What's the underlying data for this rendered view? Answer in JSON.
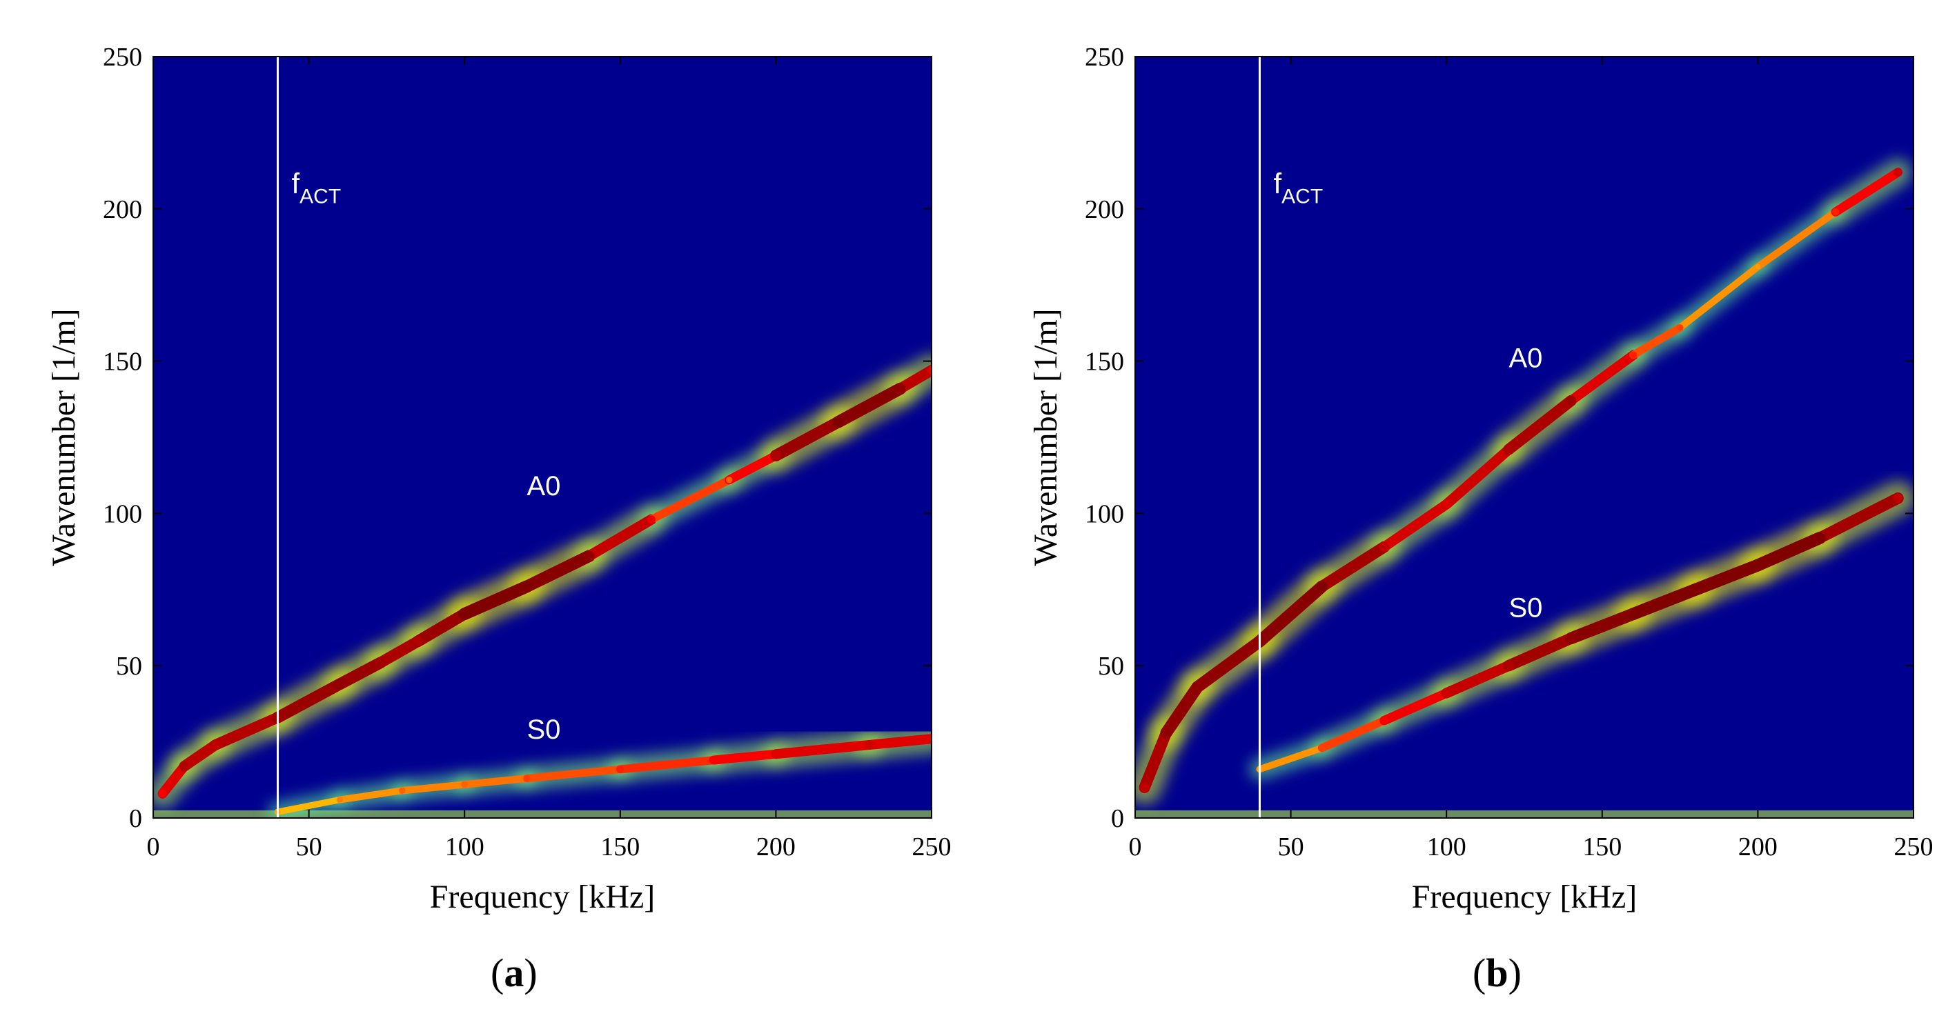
{
  "colors": {
    "background": "#00008f",
    "jet": [
      "#00008f",
      "#0000ff",
      "#00ffff",
      "#ffff00",
      "#ff0000",
      "#800000"
    ],
    "reference_line": "#ffffff",
    "annotation_text": "#ffffff"
  },
  "chart_data": [
    {
      "type": "heatmap",
      "panel_label": "a",
      "title": "",
      "xlabel": "Frequency [kHz]",
      "ylabel": "Wavenumber [1/m]",
      "xlim": [
        0,
        250
      ],
      "ylim": [
        0,
        250
      ],
      "xticks": [
        "0",
        "50",
        "100",
        "150",
        "200",
        "250"
      ],
      "yticks": [
        "0",
        "50",
        "100",
        "150",
        "200",
        "250"
      ],
      "reference_line": {
        "x": 40,
        "label_main": "f",
        "label_sub": "ACT"
      },
      "modes": [
        {
          "name": "A0",
          "label_at": [
            120,
            106
          ],
          "ridge": [
            [
              3,
              8
            ],
            [
              10,
              17
            ],
            [
              20,
              24
            ],
            [
              40,
              33
            ],
            [
              60,
              44
            ],
            [
              73,
              51
            ],
            [
              85,
              58
            ],
            [
              100,
              67
            ],
            [
              120,
              76
            ],
            [
              140,
              86
            ],
            [
              160,
              98
            ],
            [
              185,
              111
            ],
            [
              200,
              119
            ],
            [
              220,
              130
            ],
            [
              240,
              141
            ],
            [
              250,
              147
            ]
          ],
          "intensity": [
            0.6,
            0.85,
            0.8,
            0.9,
            0.95,
            0.9,
            0.85,
            1.0,
            1.0,
            0.95,
            0.65,
            0.45,
            0.85,
            1.0,
            0.95,
            0.7
          ]
        },
        {
          "name": "S0",
          "label_at": [
            120,
            26
          ],
          "ridge": [
            [
              40,
              2
            ],
            [
              60,
              6
            ],
            [
              80,
              9
            ],
            [
              100,
              11
            ],
            [
              120,
              13
            ],
            [
              150,
              16
            ],
            [
              180,
              19
            ],
            [
              200,
              21
            ],
            [
              230,
              24
            ],
            [
              250,
              26
            ]
          ],
          "intensity": [
            0.35,
            0.4,
            0.45,
            0.45,
            0.5,
            0.55,
            0.6,
            0.7,
            0.75,
            0.7
          ]
        }
      ]
    },
    {
      "type": "heatmap",
      "panel_label": "b",
      "title": "",
      "xlabel": "Frequency [kHz]",
      "ylabel": "Wavenumber [1/m]",
      "xlim": [
        0,
        250
      ],
      "ylim": [
        0,
        250
      ],
      "xticks": [
        "0",
        "50",
        "100",
        "150",
        "200",
        "250"
      ],
      "yticks": [
        "0",
        "50",
        "100",
        "150",
        "200",
        "250"
      ],
      "reference_line": {
        "x": 40,
        "label_main": "f",
        "label_sub": "ACT"
      },
      "modes": [
        {
          "name": "A0",
          "label_at": [
            120,
            148
          ],
          "ridge": [
            [
              3,
              10
            ],
            [
              10,
              28
            ],
            [
              20,
              43
            ],
            [
              40,
              58
            ],
            [
              60,
              76
            ],
            [
              80,
              89
            ],
            [
              100,
              103
            ],
            [
              120,
              121
            ],
            [
              140,
              137
            ],
            [
              160,
              152
            ],
            [
              175,
              161
            ],
            [
              200,
              181
            ],
            [
              225,
              199
            ],
            [
              245,
              212
            ]
          ],
          "intensity": [
            0.8,
            0.95,
            0.95,
            0.95,
            1.0,
            0.8,
            0.7,
            0.85,
            0.9,
            0.55,
            0.5,
            0.35,
            0.55,
            0.75
          ]
        },
        {
          "name": "S0",
          "label_at": [
            120,
            66
          ],
          "ridge": [
            [
              40,
              16
            ],
            [
              60,
              23
            ],
            [
              80,
              32
            ],
            [
              100,
              41
            ],
            [
              120,
              50
            ],
            [
              140,
              59
            ],
            [
              160,
              67
            ],
            [
              180,
              75
            ],
            [
              200,
              83
            ],
            [
              220,
              92
            ],
            [
              245,
              105
            ]
          ],
          "intensity": [
            0.35,
            0.5,
            0.6,
            0.75,
            0.85,
            0.95,
            1.0,
            1.0,
            1.0,
            1.0,
            0.8
          ]
        }
      ]
    }
  ]
}
